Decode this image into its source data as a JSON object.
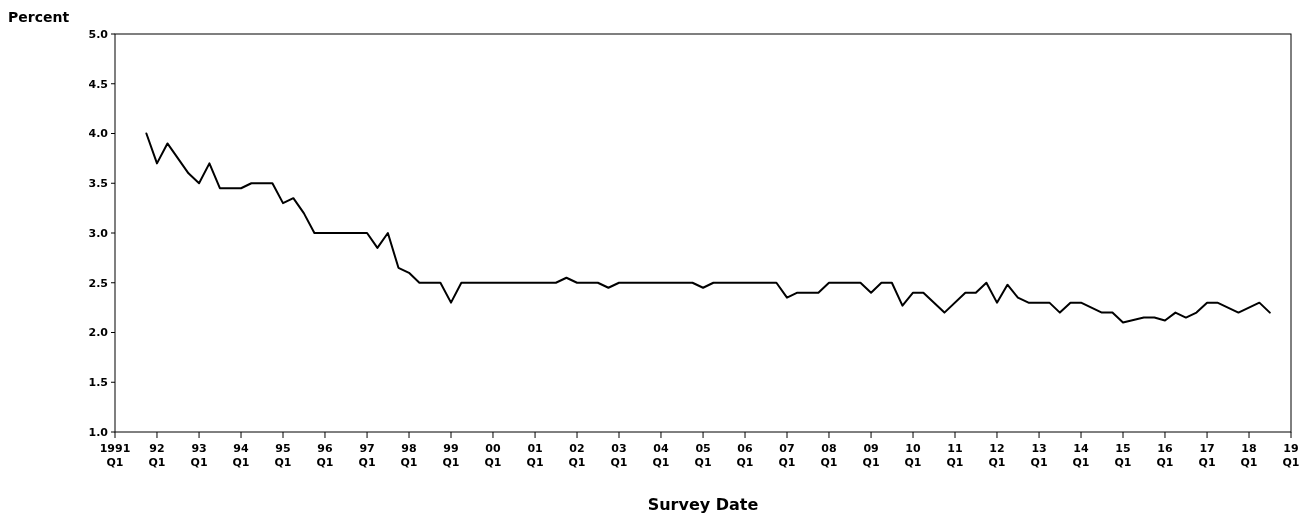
{
  "chart_data": {
    "type": "line",
    "xlabel": "Survey Date",
    "ylabel": "Percent",
    "x": [
      "1991-10",
      "1992-01",
      "1992-04",
      "1992-10",
      "1993-01",
      "1993-04",
      "1993-07",
      "1994-01",
      "1994-04",
      "1994-10",
      "1995-01",
      "1995-04",
      "1995-07",
      "1995-10",
      "1997-01",
      "1997-04",
      "1997-07",
      "1997-10",
      "1998-01",
      "1998-04",
      "1998-10",
      "1999-01",
      "1999-04",
      "2001-07",
      "2001-10",
      "2002-01",
      "2002-07",
      "2002-10",
      "2003-01",
      "2004-10",
      "2005-01",
      "2005-04",
      "2006-10",
      "2007-01",
      "2007-04",
      "2007-10",
      "2008-01",
      "2008-10",
      "2009-01",
      "2009-04",
      "2009-07",
      "2009-10",
      "2010-01",
      "2010-04",
      "2010-10",
      "2011-04",
      "2011-07",
      "2011-10",
      "2012-01",
      "2012-04",
      "2012-07",
      "2012-10",
      "2013-04",
      "2013-07",
      "2013-10",
      "2014-01",
      "2014-07",
      "2014-10",
      "2015-01",
      "2015-07",
      "2015-10",
      "2016-01",
      "2016-04",
      "2016-07",
      "2016-10",
      "2017-01",
      "2017-04",
      "2017-10",
      "2018-04",
      "2018-07"
    ],
    "series": [
      {
        "color": "#000000",
        "values": [
          4.0,
          3.7,
          3.9,
          3.6,
          3.5,
          3.7,
          3.45,
          3.45,
          3.5,
          3.5,
          3.3,
          3.35,
          3.2,
          3.0,
          3.0,
          2.85,
          3.0,
          2.65,
          2.6,
          2.5,
          2.5,
          2.3,
          2.5,
          2.5,
          2.55,
          2.5,
          2.5,
          2.45,
          2.5,
          2.5,
          2.45,
          2.5,
          2.5,
          2.35,
          2.4,
          2.4,
          2.5,
          2.5,
          2.4,
          2.5,
          2.5,
          2.27,
          2.4,
          2.4,
          2.2,
          2.4,
          2.4,
          2.5,
          2.3,
          2.48,
          2.35,
          2.3,
          2.3,
          2.2,
          2.3,
          2.3,
          2.2,
          2.2,
          2.1,
          2.15,
          2.15,
          2.12,
          2.2,
          2.15,
          2.2,
          2.3,
          2.3,
          2.2,
          2.3,
          2.2
        ]
      }
    ],
    "xlim": [
      "1991-01",
      "2019-01"
    ],
    "xticks": [
      {
        "value": "1991-01",
        "label": "1991\nQ1"
      },
      {
        "value": "1992-01",
        "label": "92\nQ1"
      },
      {
        "value": "1993-01",
        "label": "93\nQ1"
      },
      {
        "value": "1994-01",
        "label": "94\nQ1"
      },
      {
        "value": "1995-01",
        "label": "95\nQ1"
      },
      {
        "value": "1996-01",
        "label": "96\nQ1"
      },
      {
        "value": "1997-01",
        "label": "97\nQ1"
      },
      {
        "value": "1998-01",
        "label": "98\nQ1"
      },
      {
        "value": "1999-01",
        "label": "99\nQ1"
      },
      {
        "value": "2000-01",
        "label": "00\nQ1"
      },
      {
        "value": "2001-01",
        "label": "01\nQ1"
      },
      {
        "value": "2002-01",
        "label": "02\nQ1"
      },
      {
        "value": "2003-01",
        "label": "03\nQ1"
      },
      {
        "value": "2004-01",
        "label": "04\nQ1"
      },
      {
        "value": "2005-01",
        "label": "05\nQ1"
      },
      {
        "value": "2006-01",
        "label": "06\nQ1"
      },
      {
        "value": "2007-01",
        "label": "07\nQ1"
      },
      {
        "value": "2008-01",
        "label": "08\nQ1"
      },
      {
        "value": "2009-01",
        "label": "09\nQ1"
      },
      {
        "value": "2010-01",
        "label": "10\nQ1"
      },
      {
        "value": "2011-01",
        "label": "11\nQ1"
      },
      {
        "value": "2012-01",
        "label": "12\nQ1"
      },
      {
        "value": "2013-01",
        "label": "13\nQ1"
      },
      {
        "value": "2014-01",
        "label": "14\nQ1"
      },
      {
        "value": "2015-01",
        "label": "15\nQ1"
      },
      {
        "value": "2016-01",
        "label": "16\nQ1"
      },
      {
        "value": "2017-01",
        "label": "17\nQ1"
      },
      {
        "value": "2018-01",
        "label": "18\nQ1"
      },
      {
        "value": "2019-01",
        "label": "19\nQ1"
      }
    ],
    "ylim": [
      1.0,
      5.0
    ],
    "yticks": [
      {
        "value": 1.0,
        "label": "1.0"
      },
      {
        "value": 1.5,
        "label": "1.5"
      },
      {
        "value": 2.0,
        "label": "2.0"
      },
      {
        "value": 2.5,
        "label": "2.5"
      },
      {
        "value": 3.0,
        "label": "3.0"
      },
      {
        "value": 3.5,
        "label": "3.5"
      },
      {
        "value": 4.0,
        "label": "4.0"
      },
      {
        "value": 4.5,
        "label": "4.5"
      },
      {
        "value": 5.0,
        "label": "5.0"
      }
    ],
    "grid": false,
    "marker": "none",
    "line_style": "solid"
  }
}
